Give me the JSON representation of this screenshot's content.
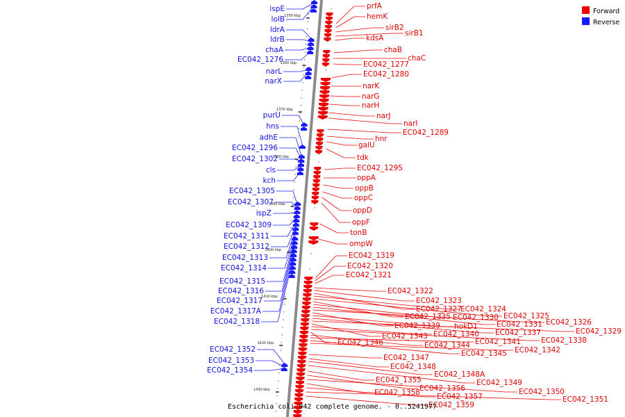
{
  "caption": "Escherichia coli 042 complete genome. - 0..5241977",
  "legend": [
    {
      "label": "Forward",
      "color": "#ee0000"
    },
    {
      "label": "Reverse",
      "color": "#1a1aff"
    }
  ],
  "ticks": [
    "1350 kbp",
    "1360 kbp",
    "1370 kbp",
    "1380 kbp",
    "1390 kbp",
    "1400 kbp",
    "1410 kbp",
    "1420 kbp",
    "1430 kbp"
  ],
  "reverse_genes": [
    "ispE",
    "lolB",
    "ldrA",
    "ldrB",
    "chaA",
    "EC042_1276",
    "narL",
    "narX",
    "purU",
    "hns",
    "adhE",
    "EC042_1296",
    "EC042_1302",
    "cls",
    "kch",
    "EC042_1305",
    "EC042_1307",
    "ispZ",
    "EC042_1309",
    "EC042_1311",
    "EC042_1312",
    "EC042_1313",
    "EC042_1314",
    "EC042_1315",
    "EC042_1316",
    "EC042_1317",
    "EC042_1317A",
    "EC042_1318",
    "EC042_1352",
    "EC042_1353",
    "EC042_1354"
  ],
  "forward_genes": [
    "prfA",
    "hemK",
    "sirB2",
    "sirB1",
    "kdsA",
    "chaB",
    "chaC",
    "EC042_1277",
    "EC042_1280",
    "narK",
    "narG",
    "narH",
    "narJ",
    "narI",
    "EC042_1289",
    "hnr",
    "galU",
    "tdk",
    "EC042_1295",
    "oppA",
    "oppB",
    "oppC",
    "oppD",
    "oppF",
    "tonB",
    "ompW",
    "EC042_1319",
    "EC042_1320",
    "EC042_1321",
    "EC042_1322",
    "EC042_1323",
    "EC042_1327",
    "EC042_1324",
    "EC042_1325",
    "EC042_1335",
    "EC042_1330",
    "EC042_1331",
    "EC042_1326",
    "EC042_1339",
    "hokD1",
    "EC042_1337",
    "EC042_1329",
    "EC042_1343",
    "EC042_1340",
    "EC042_1338",
    "EC042_1346",
    "EC042_1344",
    "EC042_1341",
    "EC042_1345",
    "EC042_1342",
    "EC042_1347",
    "EC042_1348",
    "EC042_1348A",
    "EC042_1349",
    "EC042_1355",
    "EC042_1356",
    "EC042_1350",
    "EC042_1358",
    "EC042_1357",
    "EC042_1351",
    "EC042_1359"
  ]
}
